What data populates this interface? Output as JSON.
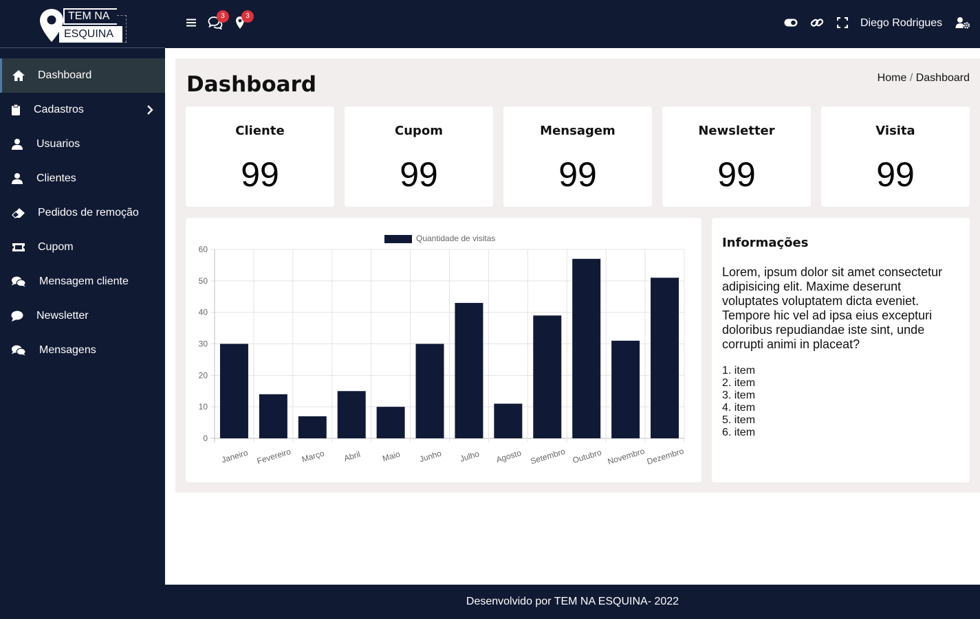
{
  "brand": {
    "line1": "TEM NA",
    "line2": "ESQUINA"
  },
  "sidebar": {
    "items": [
      {
        "label": "Dashboard",
        "icon": "home-icon",
        "active": true
      },
      {
        "label": "Cadastros",
        "icon": "clipboard-icon",
        "has_submenu": true
      },
      {
        "label": "Usuarios",
        "icon": "user-icon"
      },
      {
        "label": "Clientes",
        "icon": "user-icon"
      },
      {
        "label": "Pedidos de remoção",
        "icon": "eraser-icon"
      },
      {
        "label": "Cupom",
        "icon": "ticket-icon"
      },
      {
        "label": "Mensagem cliente",
        "icon": "comments-icon"
      },
      {
        "label": "Newsletter",
        "icon": "comment-icon"
      },
      {
        "label": "Mensagens",
        "icon": "comments-icon"
      }
    ]
  },
  "header": {
    "messages_badge": "3",
    "locations_badge": "3",
    "user_name": "Diego Rodrigues"
  },
  "page": {
    "title": "Dashboard",
    "breadcrumb": {
      "home": "Home",
      "separator": "/",
      "current": "Dashboard"
    }
  },
  "stats": [
    {
      "title": "Cliente",
      "value": "99"
    },
    {
      "title": "Cupom",
      "value": "99"
    },
    {
      "title": "Mensagem",
      "value": "99"
    },
    {
      "title": "Newsletter",
      "value": "99"
    },
    {
      "title": "Visita",
      "value": "99"
    }
  ],
  "chart_data": {
    "type": "bar",
    "title": "",
    "xlabel": "",
    "ylabel": "",
    "legend": "Quantidade de visitas",
    "categories": [
      "Janeiro",
      "Fevereiro",
      "Março",
      "Abril",
      "Maio",
      "Junho",
      "Julho",
      "Agosto",
      "Setembro",
      "Outubro",
      "Novembro",
      "Dezembro"
    ],
    "values": [
      30,
      14,
      7,
      15,
      10,
      30,
      43,
      11,
      39,
      57,
      31,
      51
    ],
    "ylim": [
      0,
      60
    ],
    "yticks": [
      0,
      10,
      20,
      30,
      40,
      50,
      60
    ],
    "grid": true,
    "color": "#101a36"
  },
  "info": {
    "title": "Informações",
    "text": "Lorem, ipsum dolor sit amet consectetur adipisicing elit. Maxime deserunt voluptates voluptatem dicta eveniet. Tempore hic vel ad ipsa eius excepturi doloribus repudiandae iste sint, unde corrupti animi in placeat?",
    "items": [
      "item",
      "item",
      "item",
      "item",
      "item",
      "item"
    ]
  },
  "footer": {
    "text": "Desenvolvido por TEM NA ESQUINA- 2022"
  },
  "colors": {
    "navy": "#111a33",
    "active_bg": "#2c3840",
    "badge": "#d9343e",
    "content_bg": "#f1eeed"
  }
}
